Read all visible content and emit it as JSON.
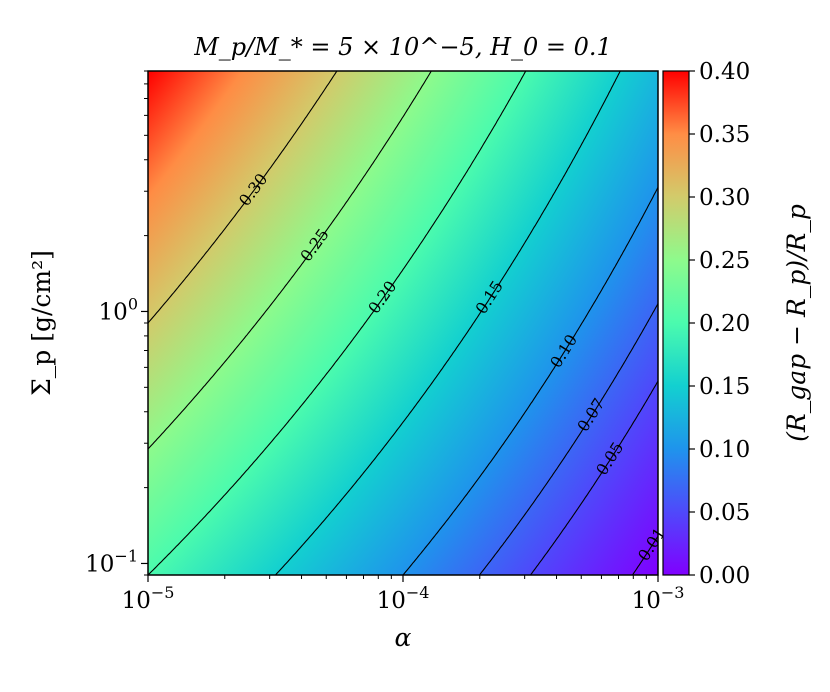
{
  "chart_data": {
    "type": "heatmap",
    "title": "M_p/M_* = 5 × 10^−5, H_0 = 0.1",
    "xlabel": "α",
    "ylabel": "Σ_p [g/cm²]",
    "xscale": "log",
    "yscale": "log",
    "xlim": [
      1e-05,
      0.001
    ],
    "ylim": [
      0.09,
      9.0
    ],
    "x_ticks": [
      {
        "value": 1e-05,
        "label": "10^−5"
      },
      {
        "value": 0.0001,
        "label": "10^−4"
      },
      {
        "value": 0.001,
        "label": "10^−3"
      }
    ],
    "y_ticks": [
      {
        "value": 0.1,
        "label": "10^−1"
      },
      {
        "value": 1.0,
        "label": "10^0"
      }
    ],
    "colormap": "rainbow",
    "colorbar": {
      "label": "(R_gap − R_p)/R_p",
      "range": [
        0.0,
        0.4
      ],
      "ticks": [
        "0.00",
        "0.05",
        "0.10",
        "0.15",
        "0.20",
        "0.25",
        "0.30",
        "0.35",
        "0.40"
      ]
    },
    "contours": [
      {
        "level": 0.01,
        "label": "0.01"
      },
      {
        "level": 0.05,
        "label": "0.05"
      },
      {
        "level": 0.07,
        "label": "0.07"
      },
      {
        "level": 0.1,
        "label": "0.10"
      },
      {
        "level": 0.15,
        "label": "0.15"
      },
      {
        "level": 0.2,
        "label": "0.20"
      },
      {
        "level": 0.25,
        "label": "0.25"
      },
      {
        "level": 0.3,
        "label": "0.30"
      }
    ],
    "corner_values": {
      "low_alpha_low_sigma": 0.2,
      "low_alpha_high_sigma": 0.4,
      "high_alpha_low_sigma": 0.0,
      "high_alpha_high_sigma": 0.13
    }
  }
}
